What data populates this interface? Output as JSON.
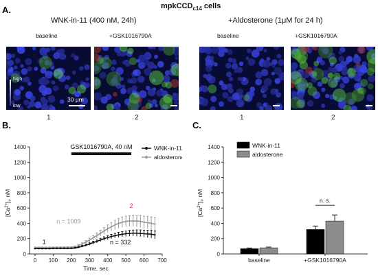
{
  "figure": {
    "title_main": "mpkCCD",
    "title_sub": "c14",
    "title_tail": " cells"
  },
  "panel_a": {
    "letter": "A.",
    "group1_title": "WNK-in-11 (400 nM, 24h)",
    "group2_title": "+Aldosterone (1μM for 24 h)",
    "images": [
      {
        "caption": "baseline",
        "number": "1",
        "green": 0.1
      },
      {
        "caption": "+GSK1016790A",
        "number": "2",
        "green": 0.35
      },
      {
        "caption": "baseline",
        "number": "1",
        "green": 0.05
      },
      {
        "caption": "+GSK1016790A",
        "number": "2",
        "green": 0.65
      }
    ],
    "intensity_high": "high",
    "intensity_low": "low",
    "scale_label": "30 μm"
  },
  "chart_data": [
    {
      "type": "line",
      "panel": "B.",
      "xlabel": "Time, sec",
      "ylabel_parts": [
        "[Ca",
        "2+",
        "]",
        "i",
        ", nM"
      ],
      "xlim": [
        -30,
        700
      ],
      "ylim": [
        0,
        1400
      ],
      "x_ticks": [
        "0",
        "100",
        "200",
        "300",
        "400",
        "500",
        "600",
        "700"
      ],
      "y_ticks": [
        "0",
        "200",
        "400",
        "600",
        "800",
        "1000",
        "1200",
        "1400"
      ],
      "legend_position": "top-right",
      "treatment_label": "GSK1016790A, 40 nM",
      "treatment_bar": [
        200,
        530
      ],
      "annotations": [
        {
          "text": "1",
          "x": 50,
          "y": 130,
          "color": "#111111"
        },
        {
          "text": "2",
          "x": 530,
          "y": 600,
          "color": "#c0392b"
        },
        {
          "text": "n = 1009",
          "x": 185,
          "y": 400,
          "color": "#999999"
        },
        {
          "text": "n = 332",
          "x": 470,
          "y": 125,
          "color": "#111111"
        }
      ],
      "series": [
        {
          "name": "WNK-in-11",
          "color": "#111111",
          "x": [
            0,
            20,
            40,
            60,
            80,
            100,
            120,
            140,
            160,
            180,
            200,
            220,
            240,
            260,
            280,
            300,
            320,
            340,
            360,
            380,
            400,
            420,
            440,
            460,
            480,
            500,
            520,
            540,
            560,
            580,
            600,
            620,
            640,
            660
          ],
          "y": [
            70,
            70,
            70,
            70,
            70,
            72,
            72,
            72,
            73,
            73,
            74,
            78,
            88,
            100,
            115,
            130,
            148,
            165,
            182,
            200,
            215,
            228,
            240,
            250,
            258,
            265,
            270,
            272,
            272,
            270,
            265,
            262,
            258,
            250
          ],
          "err": [
            6,
            6,
            6,
            6,
            6,
            6,
            6,
            6,
            6,
            6,
            6,
            8,
            10,
            12,
            14,
            16,
            18,
            20,
            22,
            24,
            26,
            28,
            30,
            32,
            34,
            36,
            38,
            40,
            42,
            44,
            46,
            48,
            50,
            52
          ]
        },
        {
          "name": "aldosterone",
          "color": "#999999",
          "x": [
            0,
            20,
            40,
            60,
            80,
            100,
            120,
            140,
            160,
            180,
            200,
            220,
            240,
            260,
            280,
            300,
            320,
            340,
            360,
            380,
            400,
            420,
            440,
            460,
            480,
            500,
            520,
            540,
            560,
            580,
            600,
            620,
            640,
            660
          ],
          "y": [
            85,
            85,
            85,
            85,
            85,
            86,
            86,
            87,
            87,
            88,
            88,
            95,
            110,
            130,
            155,
            180,
            210,
            240,
            270,
            300,
            330,
            355,
            380,
            400,
            415,
            425,
            430,
            432,
            430,
            425,
            415,
            410,
            400,
            390
          ],
          "err": [
            6,
            6,
            6,
            6,
            6,
            6,
            6,
            6,
            6,
            6,
            6,
            9,
            12,
            16,
            20,
            25,
            30,
            35,
            40,
            45,
            50,
            55,
            60,
            65,
            68,
            70,
            72,
            74,
            76,
            78,
            80,
            82,
            84,
            86
          ]
        }
      ]
    },
    {
      "type": "bar",
      "panel": "C.",
      "ylabel_parts": [
        "[Ca",
        "2+",
        "]",
        "i",
        ", nM"
      ],
      "ylim": [
        0,
        1400
      ],
      "y_ticks": [
        "0",
        "200",
        "400",
        "600",
        "800",
        "1000",
        "1200",
        "1400"
      ],
      "categories": [
        "baseline",
        "+GSK1016790A"
      ],
      "legend_position": "top-left",
      "significance": "n. s.",
      "series": [
        {
          "name": "WNK-in-11",
          "color": "#000000",
          "values": [
            70,
            320
          ],
          "err": [
            8,
            45
          ]
        },
        {
          "name": "aldosterone",
          "color": "#8c8c8c",
          "values": [
            80,
            430
          ],
          "err": [
            10,
            80
          ]
        }
      ]
    }
  ]
}
